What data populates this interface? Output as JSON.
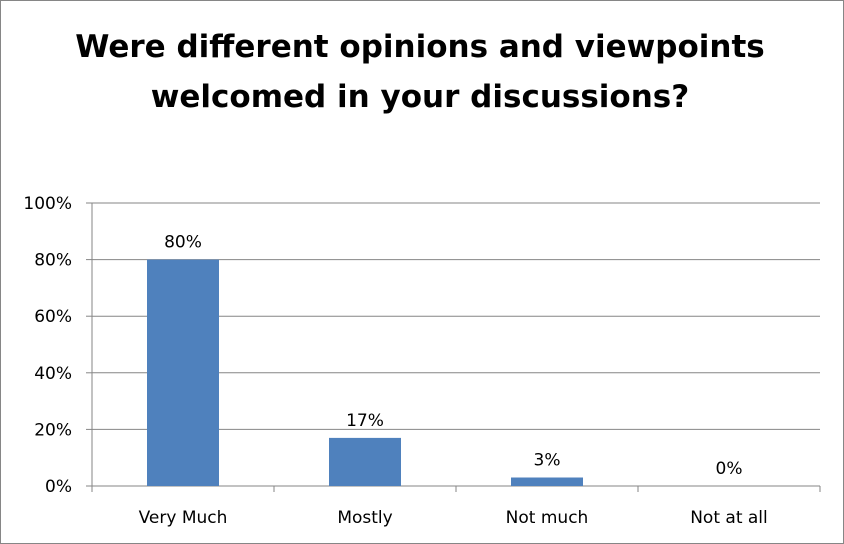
{
  "chart_data": {
    "type": "bar",
    "title": "Were different opinions and viewpoints welcomed in your discussions?",
    "categories": [
      "Very Much",
      "Mostly",
      "Not much",
      "Not at all"
    ],
    "values": [
      80,
      17,
      3,
      0
    ],
    "data_labels": [
      "80%",
      "17%",
      "3%",
      "0%"
    ],
    "ylim": [
      0,
      100
    ],
    "y_ticks": [
      0,
      20,
      40,
      60,
      80,
      100
    ],
    "y_tick_labels": [
      "0%",
      "20%",
      "40%",
      "60%",
      "80%",
      "100%"
    ],
    "xlabel": "",
    "ylabel": "",
    "grid": true,
    "legend": "none",
    "bar_color": "#4F81BD",
    "grid_color": "#868686"
  }
}
